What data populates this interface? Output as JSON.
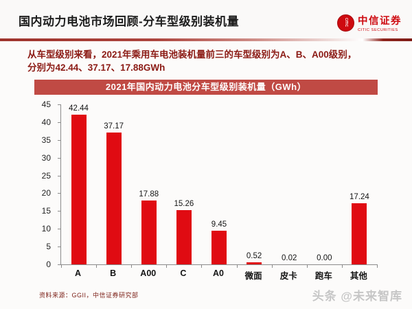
{
  "header": {
    "title": "国内动力电池市场回顾-分车型级别装机量",
    "logo": {
      "mark_letters": "CITIC",
      "name_cn": "中信证券",
      "name_en": "CITIC SECURITIES"
    }
  },
  "summary": {
    "line1": "从车型级别来看，2021年乘用车电池装机量前三的车型级别为A、B、A00级别，",
    "line2": "分别为42.44、37.17、17.88GWh"
  },
  "chart_data": {
    "type": "bar",
    "title": "2021年国内动力电池分车型级别装机量（GWh）",
    "categories": [
      "A",
      "B",
      "A00",
      "C",
      "A0",
      "微面",
      "皮卡",
      "跑车",
      "其他"
    ],
    "values": [
      42.44,
      37.17,
      17.88,
      15.26,
      9.45,
      0.52,
      0.02,
      0.0,
      17.24
    ],
    "value_labels": [
      "42.44",
      "37.17",
      "17.88",
      "15.26",
      "9.45",
      "0.52",
      "0.02",
      "0.00",
      "17.24"
    ],
    "xlabel": "",
    "ylabel": "",
    "ylim": [
      0,
      45
    ],
    "yticks": [
      0,
      5,
      10,
      15,
      20,
      25,
      30,
      35,
      40,
      45
    ],
    "grid": false,
    "legend": null,
    "bar_color": "#e00b12"
  },
  "footer": {
    "source": "资料来源：GGII，中信证券研究部",
    "watermark": "头条 @未来智库"
  },
  "colors": {
    "accent_red": "#e00b12",
    "title_bar_red": "#c04a44",
    "summary_red": "#8b1a14",
    "logo_red": "#ce0a10",
    "axis_gray": "#8a8a8a"
  }
}
